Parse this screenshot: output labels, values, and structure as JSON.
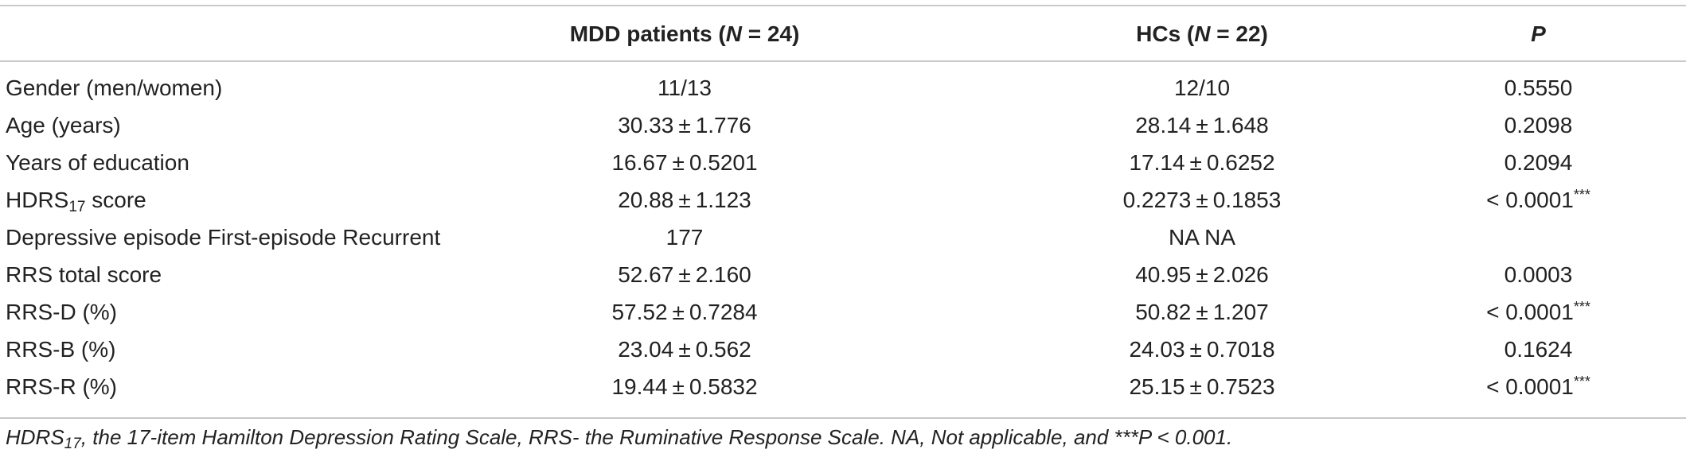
{
  "table": {
    "headers": {
      "variable": "",
      "mdd_prefix": "MDD patients (",
      "mdd_n": "N",
      "mdd_suffix": " = 24)",
      "hc_prefix": "HCs (",
      "hc_n": "N",
      "hc_suffix": " = 22)",
      "p": "P"
    },
    "rows": [
      {
        "label": "Gender (men/women)",
        "mdd": "11/13",
        "hc": "12/10",
        "p": "0.5550",
        "p_sup": ""
      },
      {
        "label": "Age (years)",
        "mdd_a": "30.33",
        "mdd_b": "1.776",
        "hc_a": "28.14",
        "hc_b": "1.648",
        "p": "0.2098",
        "p_sup": ""
      },
      {
        "label": "Years of education",
        "mdd_a": "16.67",
        "mdd_b": "0.5201",
        "hc_a": "17.14",
        "hc_b": "0.6252",
        "p": "0.2094",
        "p_sup": ""
      },
      {
        "label_main": "HDRS",
        "label_sub": "17",
        "label_tail": " score",
        "mdd_a": "20.88",
        "mdd_b": "1.123",
        "hc_a": "0.2273",
        "hc_b": "0.1853",
        "p": "< 0.0001",
        "p_sup": "***"
      },
      {
        "label": "Depressive episode First-episode Recurrent",
        "mdd": "177",
        "hc": "NA NA",
        "p": "",
        "p_sup": ""
      },
      {
        "label": "RRS total score",
        "mdd_a": "52.67",
        "mdd_b": "2.160",
        "hc_a": "40.95",
        "hc_b": "2.026",
        "p": "0.0003",
        "p_sup": ""
      },
      {
        "label": "RRS-D (%)",
        "mdd_a": "57.52",
        "mdd_b": "0.7284",
        "hc_a": "50.82",
        "hc_b": "1.207",
        "p": "< 0.0001",
        "p_sup": "***"
      },
      {
        "label": "RRS-B (%)",
        "mdd_a": "23.04",
        "mdd_b": "0.562",
        "hc_a": "24.03",
        "hc_b": "0.7018",
        "p": "0.1624",
        "p_sup": ""
      },
      {
        "label": "RRS-R (%)",
        "mdd_a": "19.44",
        "mdd_b": "0.5832",
        "hc_a": "25.15",
        "hc_b": "0.7523",
        "p": "< 0.0001",
        "p_sup": "***"
      }
    ],
    "pm_symbol": "±",
    "footnote_a": "HDRS",
    "footnote_sub": "17",
    "footnote_b": ", the 17-item Hamilton Depression Rating Scale, RRS- the Ruminative Response Scale. NA, Not applicable, and ***P < 0.001."
  }
}
